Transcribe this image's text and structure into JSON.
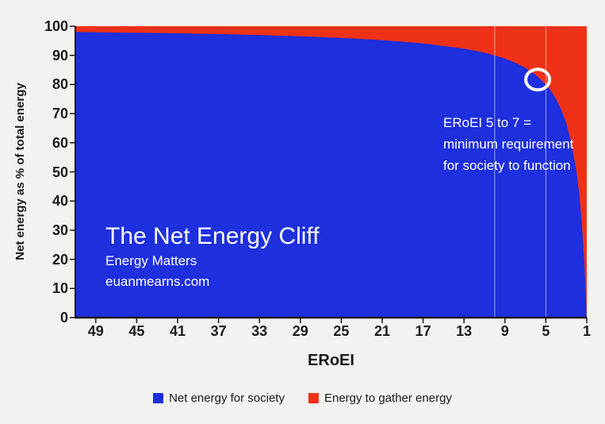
{
  "chart": {
    "title": "The Net Energy Cliff",
    "subtitle1": "Energy Matters",
    "subtitle2": "euanmearns.com",
    "annotation": {
      "line1": "ERoEI 5 to 7 =",
      "line2": "minimum requirement",
      "line3": "for society to function"
    },
    "xlabel": "ERoEI",
    "ylabel": "Net energy as % of total energy",
    "legend": [
      {
        "label": "Net energy for society",
        "color": "#1e2fdd"
      },
      {
        "label": "Energy to gather energy",
        "color": "#ee3117"
      }
    ]
  },
  "chart_data": {
    "type": "area",
    "title": "The Net Energy Cliff",
    "xlabel": "ERoEI",
    "ylabel": "Net energy as % of total energy",
    "x_axis_reversed": true,
    "xlim": [
      51,
      1
    ],
    "ylim": [
      0,
      100
    ],
    "x_ticks": [
      49,
      45,
      41,
      37,
      33,
      29,
      25,
      21,
      17,
      13,
      9,
      5,
      1
    ],
    "y_ticks": [
      0,
      10,
      20,
      30,
      40,
      50,
      60,
      70,
      80,
      90,
      100
    ],
    "grid": "vertical reference lines only",
    "legend_position": "bottom",
    "series": [
      {
        "name": "Net energy for society",
        "color": "#1e2fdd",
        "formula": "net % = (ERoEI - 1) / ERoEI * 100",
        "x": [
          51,
          49,
          45,
          41,
          37,
          33,
          29,
          25,
          21,
          17,
          13,
          12,
          11,
          10,
          9,
          8,
          7,
          6,
          5,
          4.5,
          4,
          3.5,
          3,
          2.5,
          2,
          1.75,
          1.5,
          1.25,
          1
        ],
        "y": [
          98.04,
          97.96,
          97.78,
          97.56,
          97.3,
          96.97,
          96.55,
          96.0,
          95.24,
          94.12,
          92.31,
          91.67,
          90.91,
          90.0,
          88.89,
          87.5,
          85.71,
          83.33,
          80.0,
          77.78,
          75.0,
          71.43,
          66.67,
          60.0,
          50.0,
          42.86,
          33.33,
          20.0,
          0.0
        ]
      },
      {
        "name": "Energy to gather energy",
        "color": "#ee3117",
        "note": "fills remainder of plot up to 100%"
      }
    ],
    "reference_lines_x": [
      10,
      5
    ],
    "highlight_circle": {
      "x": 5.8,
      "y": 81.7
    }
  }
}
